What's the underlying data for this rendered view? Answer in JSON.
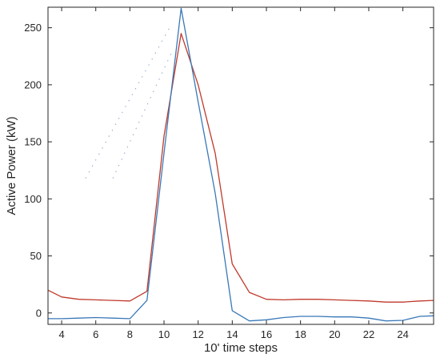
{
  "chart_data": {
    "type": "line",
    "xlabel": "10' time steps",
    "ylabel": "Active Power (kW)",
    "xlim": [
      3.2,
      25.8
    ],
    "ylim": [
      -10,
      268
    ],
    "x_ticks": [
      4,
      6,
      8,
      10,
      12,
      14,
      16,
      18,
      20,
      22,
      24
    ],
    "y_ticks": [
      0,
      50,
      100,
      150,
      200,
      250
    ],
    "grid": false,
    "box": true,
    "colors": {
      "series_red": "#c0392b",
      "series_blue": "#3a78b8",
      "ghost": "#8aa6c8",
      "axis": "#262626"
    },
    "series": [
      {
        "color": "#c0392b",
        "x": [
          3.2,
          4,
          5,
          6,
          7,
          8,
          9,
          10,
          11,
          12,
          13,
          14,
          15,
          16,
          17,
          18,
          19,
          20,
          21,
          22,
          23,
          24,
          25,
          25.8
        ],
        "y": [
          20,
          14,
          12,
          11.5,
          11,
          10.5,
          19,
          155,
          245,
          200,
          140,
          43,
          18,
          12,
          11.5,
          12,
          12,
          11.5,
          11,
          10.5,
          9.5,
          9.5,
          10.5,
          11
        ]
      },
      {
        "color": "#3a78b8",
        "x": [
          3.2,
          4,
          5,
          6,
          7,
          8,
          9,
          10,
          11,
          12,
          13,
          14,
          15,
          16,
          17,
          18,
          19,
          20,
          21,
          22,
          23,
          24,
          25,
          25.8
        ],
        "y": [
          -5,
          -5,
          -4.5,
          -4,
          -4.5,
          -5,
          11,
          140,
          267,
          185,
          105,
          2,
          -7,
          -6,
          -4,
          -3,
          -3,
          -3.5,
          -3.5,
          -4.5,
          -7,
          -6.5,
          -3,
          -2.5
        ]
      }
    ],
    "ghost_segments": {
      "color": "#8aa6c8",
      "lines": [
        [
          [
            5.4,
            118
          ],
          [
            10.4,
            252
          ]
        ],
        [
          [
            7.0,
            118
          ],
          [
            10.5,
            230
          ]
        ]
      ]
    }
  }
}
